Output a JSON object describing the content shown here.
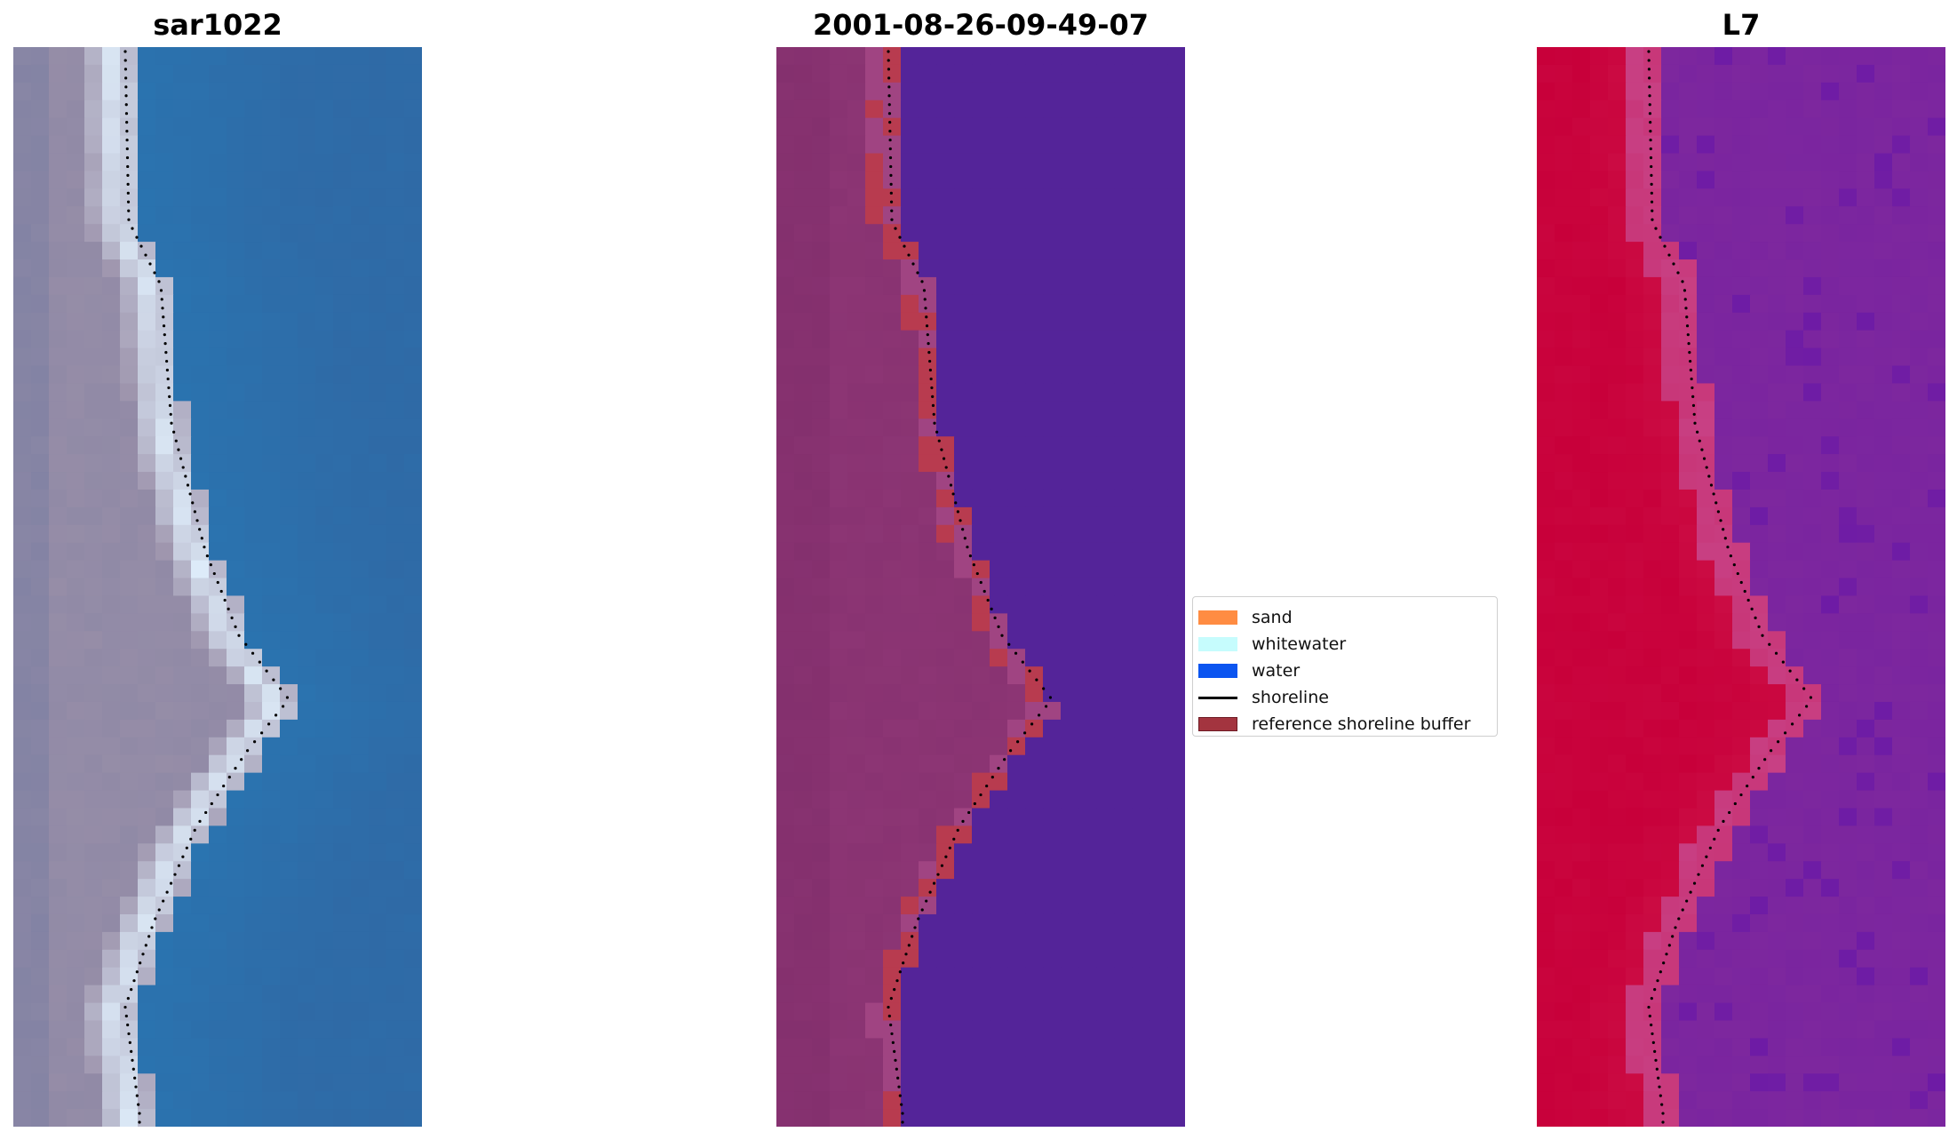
{
  "panels": [
    {
      "title": "sar1022"
    },
    {
      "title": "2001-08-26-09-49-07"
    },
    {
      "title": "L7"
    }
  ],
  "legend": {
    "items": [
      {
        "label": "sand",
        "kind": "patch",
        "color": "#ff8c42",
        "border": "#ff8c42"
      },
      {
        "label": "whitewater",
        "kind": "patch",
        "color": "#c6fcfd",
        "border": "#c6fcfd"
      },
      {
        "label": "water",
        "kind": "patch",
        "color": "#0b55f0",
        "border": "#0b55f0"
      },
      {
        "label": "shoreline",
        "kind": "line",
        "color": "#000000",
        "border": "#000000"
      },
      {
        "label": "reference shoreline buffer",
        "kind": "patch",
        "color": "#a3343f",
        "border": "#6e1c25"
      }
    ]
  },
  "colors": {
    "rgb_sand": "#9a8fa8",
    "rgb_water": "#2f6aa6",
    "rgb_white": "#dfeefb",
    "class_land": "#8c3574",
    "class_water": "#542499",
    "class_buffer": "#c03c48",
    "ndwi_land": "#c8003a",
    "ndwi_water": "#7d279e",
    "shoreline_dots": "#000000"
  }
}
